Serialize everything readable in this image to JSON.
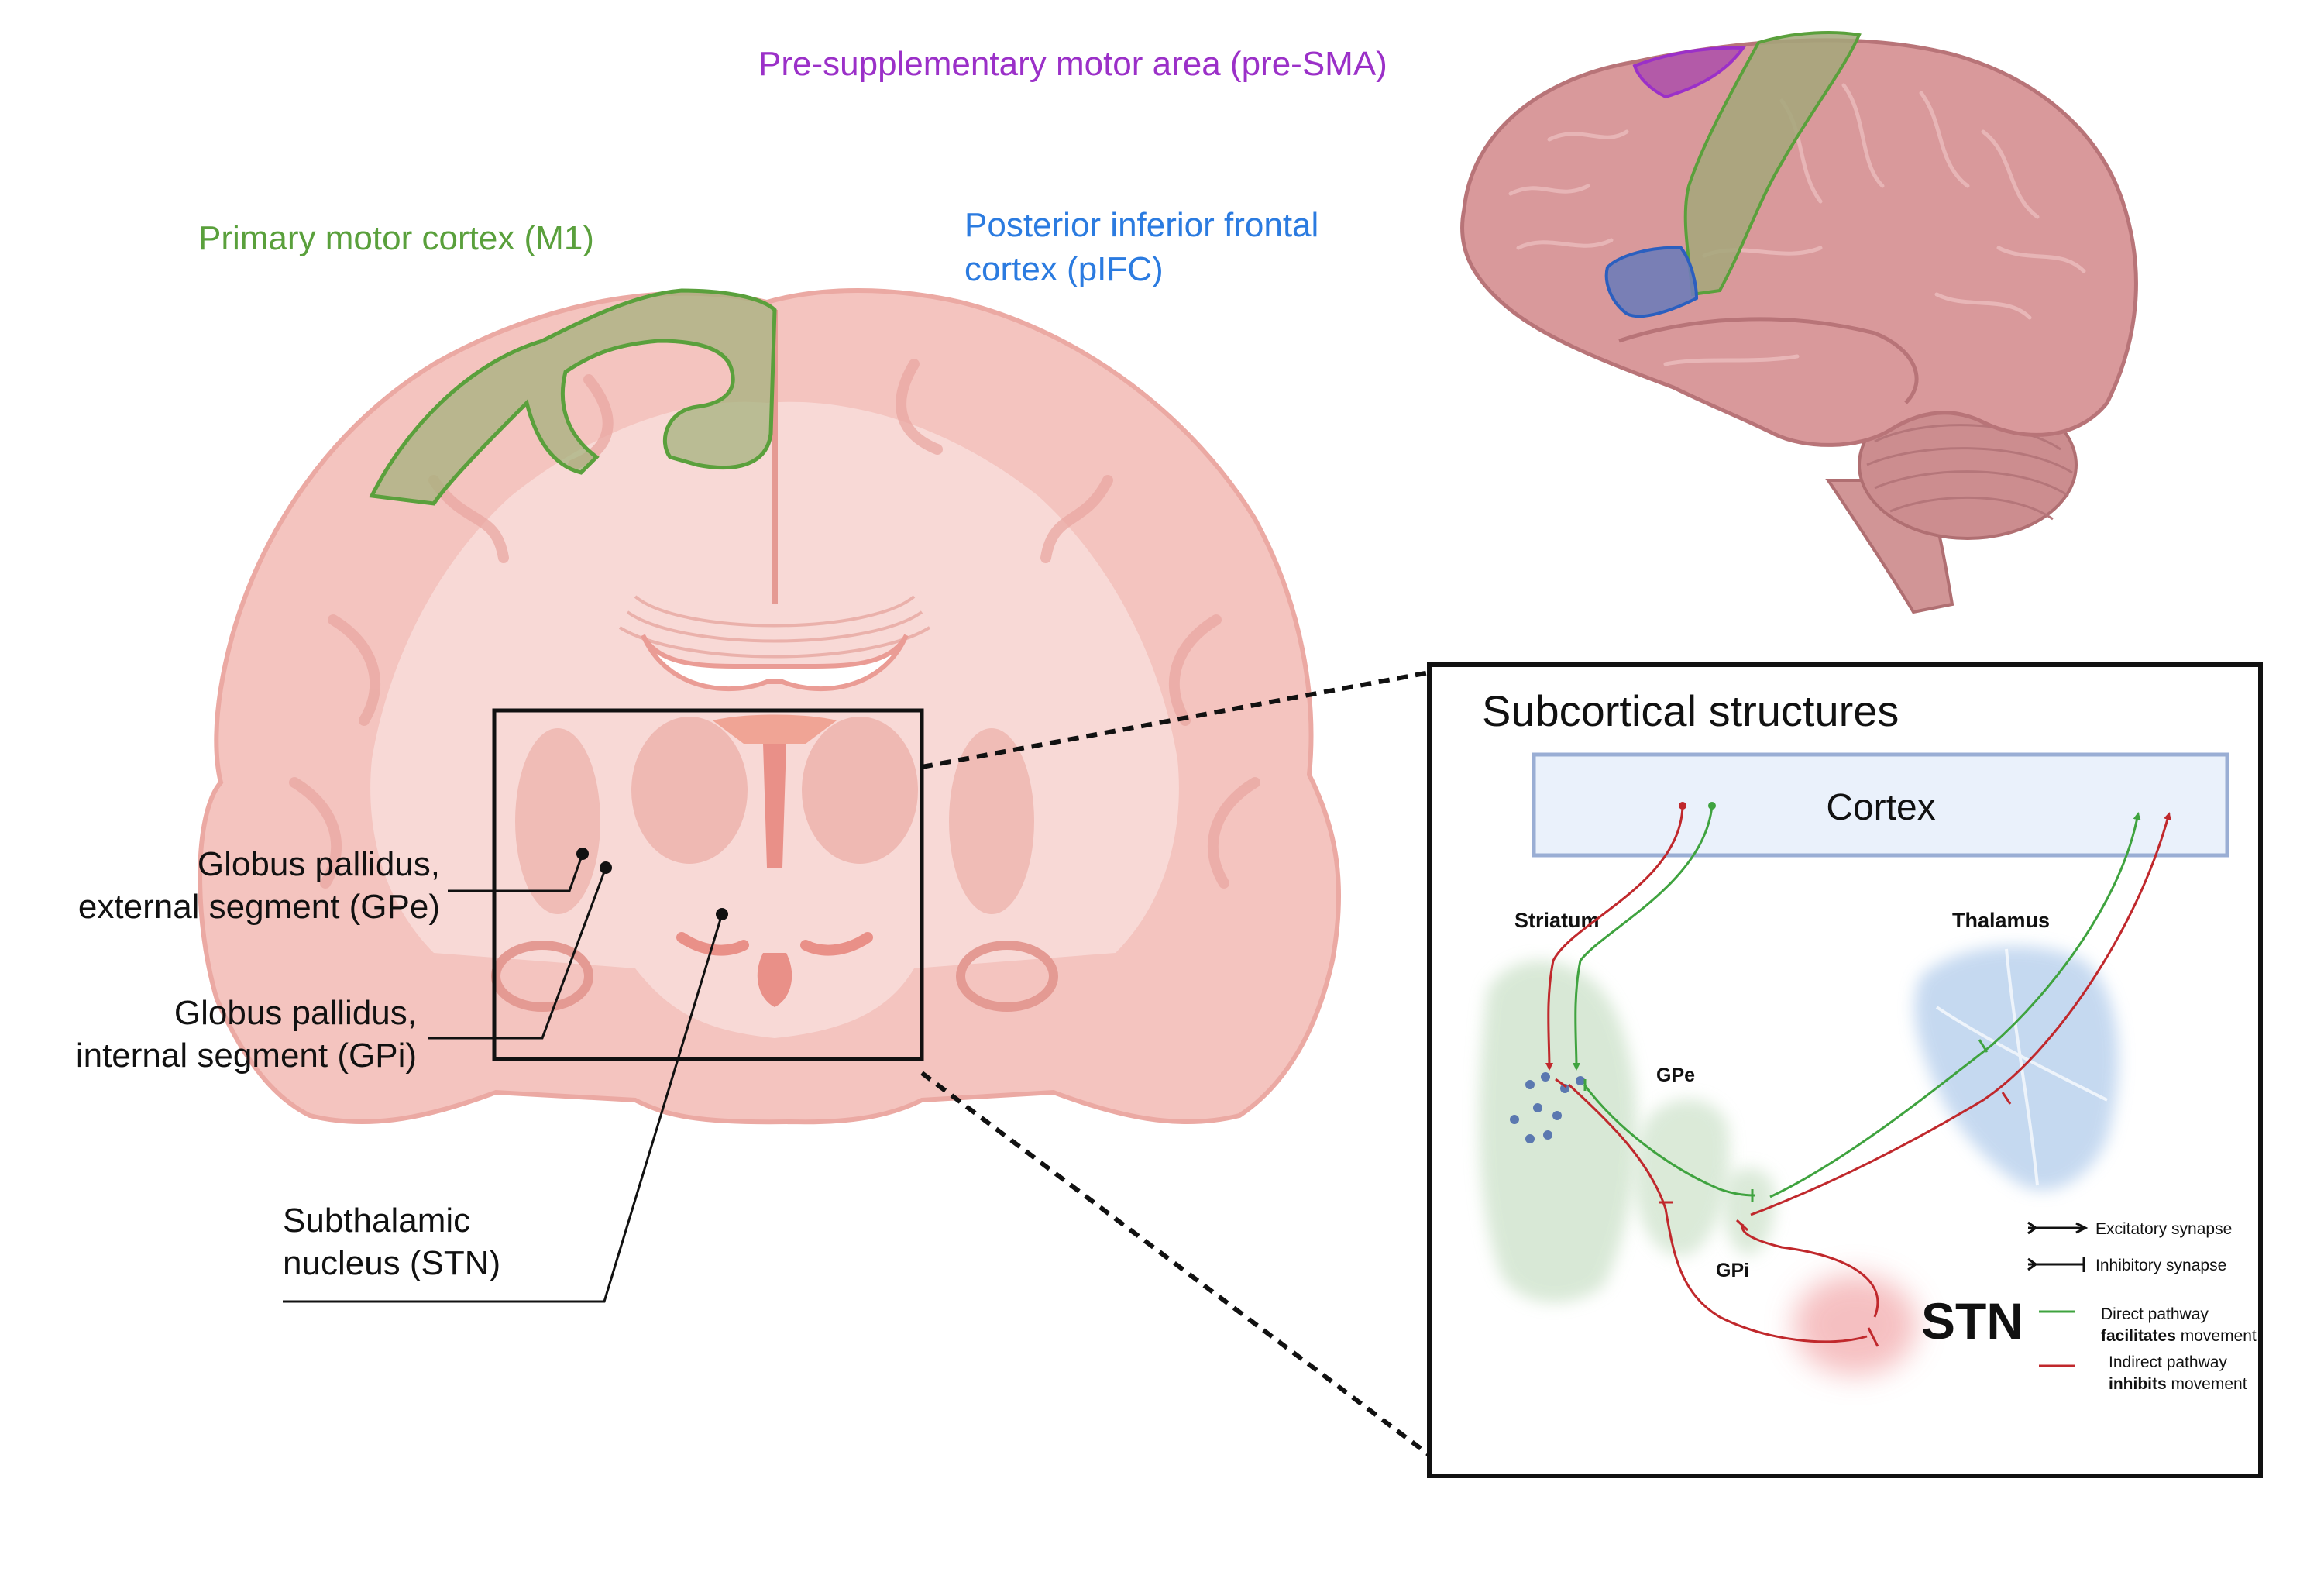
{
  "labels": {
    "pre_sma": "Pre-supplementary motor area (pre-SMA)",
    "m1": "Primary motor cortex (M1)",
    "pifc_line1": "Posterior inferior frontal",
    "pifc_line2": "cortex (pIFC)",
    "gpe_line1": "Globus pallidus,",
    "gpe_line2": "external segment (GPe)",
    "gpi_line1": "Globus pallidus,",
    "gpi_line2": "internal segment (GPi)",
    "stn_line1": "Subthalamic",
    "stn_line2": "nucleus (STN)"
  },
  "inset": {
    "title": "Subcortical structures",
    "cortex": "Cortex",
    "striatum": "Striatum",
    "thalamus": "Thalamus",
    "gpe": "GPe",
    "gpi": "GPi",
    "stn": "STN"
  },
  "legend": {
    "excitatory": "Excitatory synapse",
    "inhibitory": "Inhibitory synapse",
    "direct_line1": "Direct pathway",
    "direct_bold": "facilitates",
    "direct_rest": " movement",
    "indirect_line1": "Indirect pathway",
    "indirect_bold": "inhibits",
    "indirect_rest": " movement"
  },
  "colors": {
    "pre_sma": "#9b30c8",
    "m1": "#5aa03c",
    "pifc": "#2b7be0",
    "direct": "#3fa33f",
    "indirect": "#c0282c",
    "brain": "#f2b8b2",
    "cortex_box": "#eaf1fb"
  }
}
